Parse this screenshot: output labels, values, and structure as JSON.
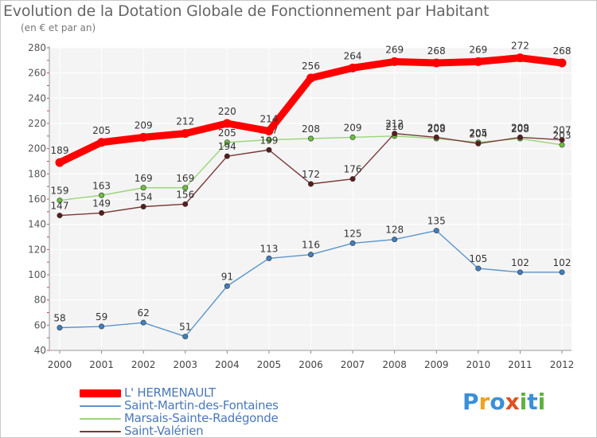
{
  "header": {
    "title": "Evolution de la Dotation Globale de Fonctionnement par Habitant",
    "subtitle": "(en € et par an)"
  },
  "logo": {
    "text": "Proxiti",
    "letters": [
      "P",
      "r",
      "o",
      "x",
      "i",
      "t",
      "i"
    ],
    "colors": [
      "#3a8fd8",
      "#f0a020",
      "#3a8fd8",
      "#e05020",
      "#60b040",
      "#3a8fd8",
      "#60b040"
    ]
  },
  "chart_data": {
    "type": "line",
    "title": "Evolution de la Dotation Globale de Fonctionnement par Habitant",
    "subtitle": "(en € et par an)",
    "xlabel": "",
    "ylabel": "",
    "ylim": [
      40,
      280
    ],
    "yticks": [
      40,
      60,
      80,
      100,
      120,
      140,
      160,
      180,
      200,
      220,
      240,
      260,
      280
    ],
    "grid": true,
    "legend_position": "bottom-left",
    "x": [
      "2000",
      "2001",
      "2002",
      "2003",
      "2004",
      "2005",
      "2006",
      "2007",
      "2008",
      "2009",
      "2010",
      "2011",
      "2012"
    ],
    "series": [
      {
        "name": "Saint-Martin-des-Fontaines",
        "color": "#5a95cc",
        "marker": "#3f7fc0",
        "values": [
          58,
          59,
          62,
          51,
          91,
          113,
          116,
          125,
          128,
          135,
          105,
          102,
          102
        ]
      },
      {
        "name": "Marsais-Sainte-Radégonde",
        "color": "#9ad67a",
        "marker": "#6cbf3f",
        "values": [
          159,
          163,
          169,
          169,
          205,
          207,
          208,
          209,
          210,
          208,
          205,
          208,
          203
        ]
      },
      {
        "name": "Saint-Valérien",
        "color": "#7a3838",
        "marker": "#5a1c1c",
        "values": [
          147,
          149,
          154,
          156,
          194,
          199,
          172,
          176,
          212,
          209,
          204,
          209,
          207
        ]
      },
      {
        "name": "L' HERMENAULT",
        "color": "#ff0000",
        "marker": "#ff0000",
        "values": [
          189,
          205,
          209,
          212,
          220,
          214,
          256,
          264,
          269,
          268,
          269,
          272,
          268
        ]
      }
    ],
    "data_labels": {
      "Saint-Martin-des-Fontaines": [
        "58",
        "59",
        "62",
        "51",
        "91",
        "113",
        "116",
        "125",
        "128",
        "135",
        "105",
        "102",
        "102"
      ],
      "Marsais-Sainte-Radégonde": [
        "159",
        "163",
        "169",
        "169",
        "205",
        "207",
        "208",
        "209",
        "210",
        "208",
        "205",
        "208",
        "203"
      ],
      "Saint-Valérien": [
        "147",
        "149",
        "154",
        "156",
        "194",
        "199",
        "172",
        "176",
        "212",
        "209",
        "204",
        "209",
        "207"
      ],
      "L' HERMENAULT": [
        "189",
        "205",
        "209",
        "212",
        "220",
        "214",
        "256",
        "264",
        "269",
        "268",
        "269",
        "272",
        "268"
      ]
    },
    "legend": [
      "L' HERMENAULT",
      "Saint-Martin-des-Fontaines",
      "Marsais-Sainte-Radégonde",
      "Saint-Valérien"
    ]
  }
}
